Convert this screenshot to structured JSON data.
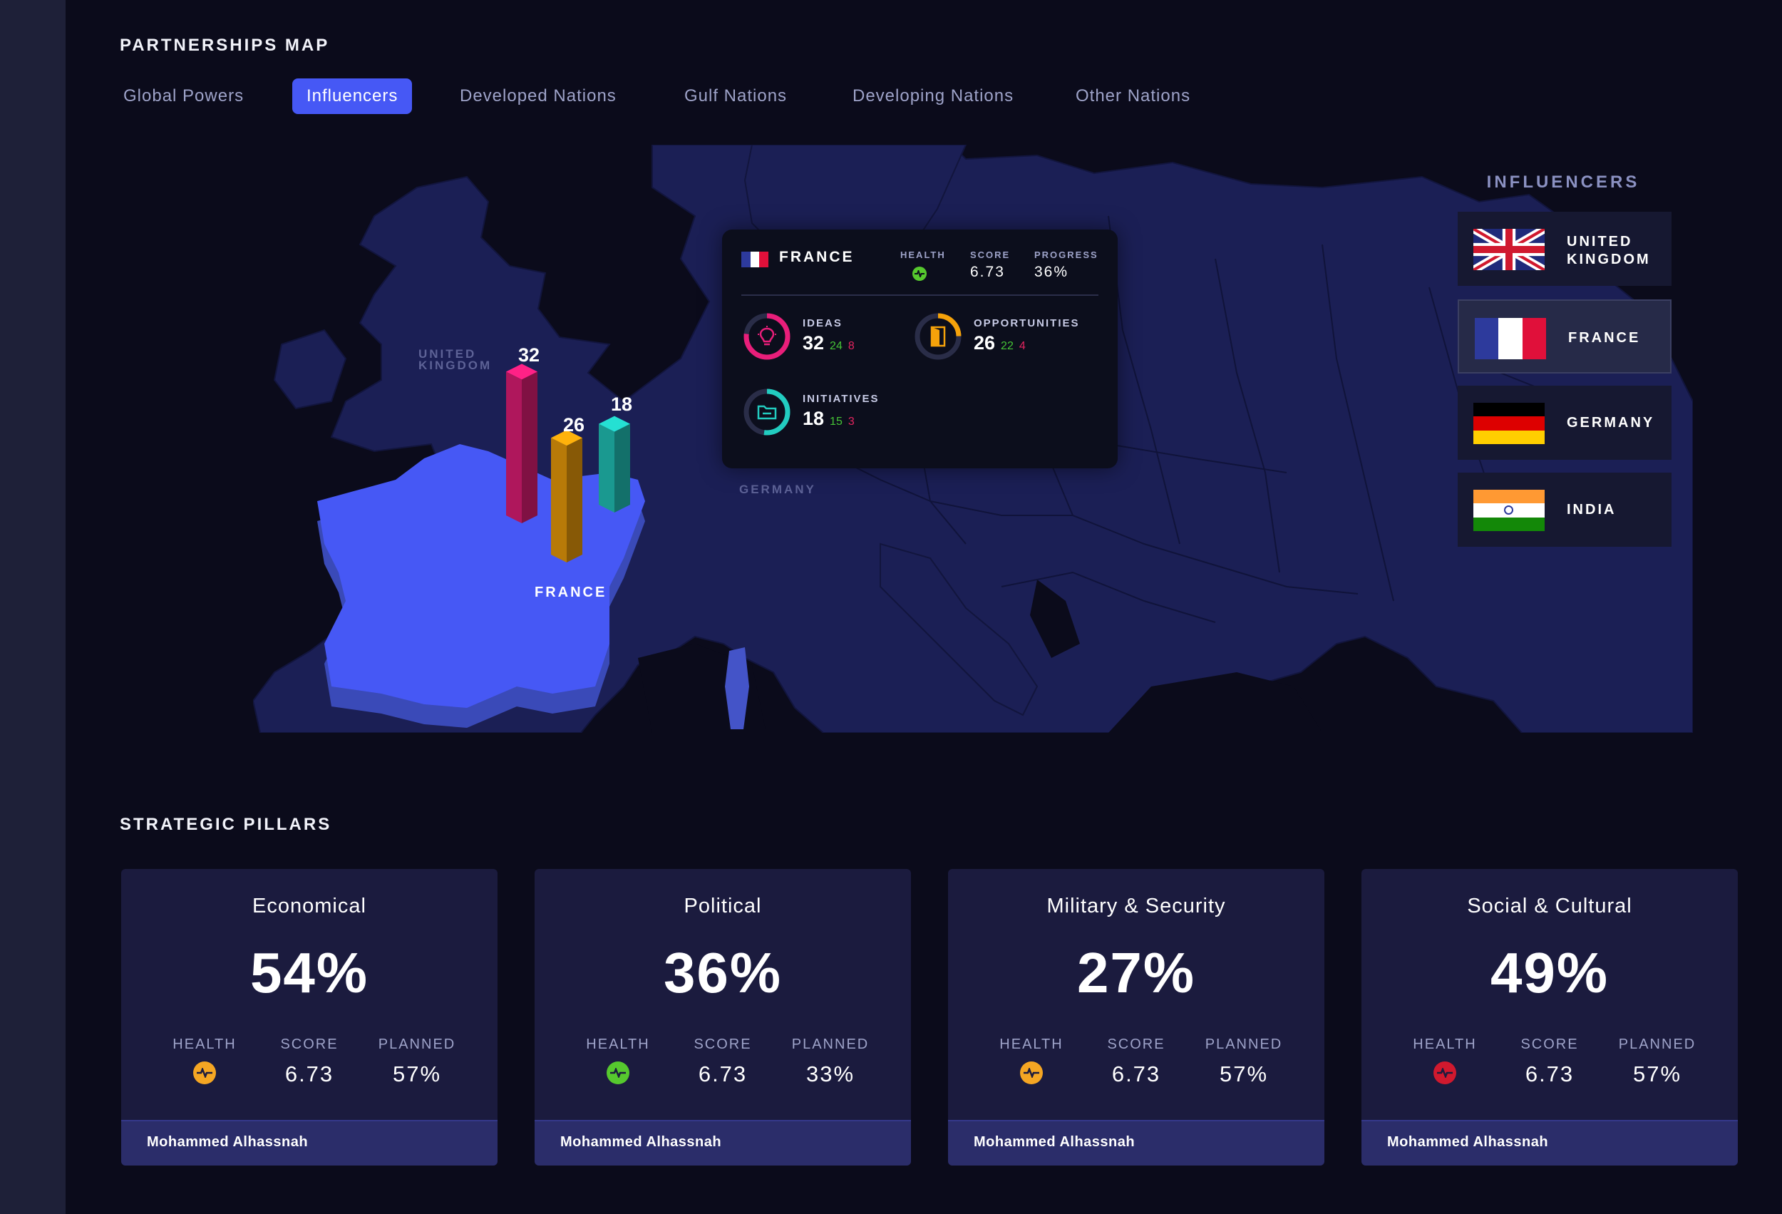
{
  "header": {
    "title": "PARTNERSHIPS MAP"
  },
  "tabs": [
    {
      "label": "Global Powers",
      "active": false
    },
    {
      "label": "Influencers",
      "active": true
    },
    {
      "label": "Developed Nations",
      "active": false
    },
    {
      "label": "Gulf Nations",
      "active": false
    },
    {
      "label": "Developing Nations",
      "active": false
    },
    {
      "label": "Other Nations",
      "active": false
    }
  ],
  "map": {
    "labels": {
      "uk": "UNITED KINGDOM",
      "germany": "GERMANY",
      "france": "FRANCE"
    },
    "bars": [
      {
        "value": "32",
        "color": "#e91e7a",
        "metric": "ideas"
      },
      {
        "value": "26",
        "color": "#f5a20a",
        "metric": "opportunities"
      },
      {
        "value": "18",
        "color": "#22ccc0",
        "metric": "initiatives"
      }
    ],
    "highlight_color": "#4658f5"
  },
  "popup": {
    "country": "FRANCE",
    "health_label": "HEALTH",
    "score_label": "SCORE",
    "score": "6.73",
    "progress_label": "PROGRESS",
    "progress": "36%",
    "ideas": {
      "label": "IDEAS",
      "value": "32",
      "green": "24",
      "red": "8",
      "icon": "lightbulb-icon"
    },
    "opportunities": {
      "label": "OPPORTUNITIES",
      "value": "26",
      "green": "22",
      "red": "4",
      "icon": "door-icon"
    },
    "initiatives": {
      "label": "INITIATIVES",
      "value": "18",
      "green": "15",
      "red": "3",
      "icon": "folder-icon"
    }
  },
  "sidebar": {
    "title": "INFLUENCERS",
    "items": [
      {
        "name": "UNITED KINGDOM",
        "active": false
      },
      {
        "name": "FRANCE",
        "active": true
      },
      {
        "name": "GERMANY",
        "active": false
      },
      {
        "name": "INDIA",
        "active": false
      }
    ]
  },
  "pillars": {
    "title": "STRATEGIC PILLARS",
    "labels": {
      "health": "HEALTH",
      "score": "SCORE",
      "planned": "PLANNED"
    },
    "cards": [
      {
        "title": "Economical",
        "percent": "54%",
        "health_color": "#f5a623",
        "score": "6.73",
        "planned": "57%",
        "owner": "Mohammed Alhassnah"
      },
      {
        "title": "Political",
        "percent": "36%",
        "health_color": "#56c82e",
        "score": "6.73",
        "planned": "33%",
        "owner": "Mohammed Alhassnah"
      },
      {
        "title": "Military & Security",
        "percent": "27%",
        "health_color": "#f5a623",
        "score": "6.73",
        "planned": "57%",
        "owner": "Mohammed Alhassnah"
      },
      {
        "title": "Social & Cultural",
        "percent": "49%",
        "health_color": "#d0192e",
        "score": "6.73",
        "planned": "57%",
        "owner": "Mohammed Alhassnah"
      }
    ]
  }
}
